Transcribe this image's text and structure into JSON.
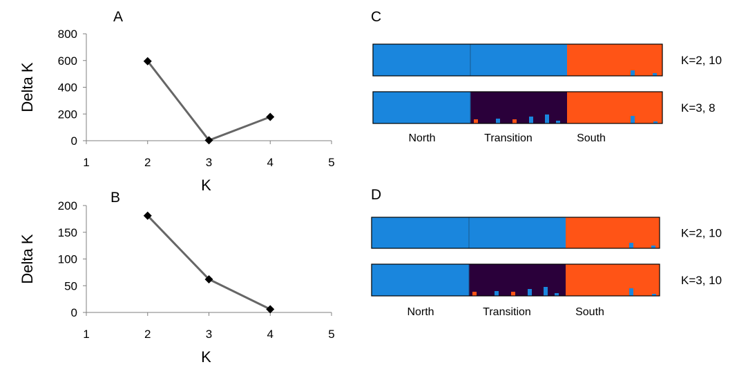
{
  "panel_a_label": "A",
  "panel_b_label": "B",
  "panel_c_label": "C",
  "panel_d_label": "D",
  "chart_data": [
    {
      "id": "A",
      "type": "line",
      "title": "",
      "xlabel": "K",
      "ylabel": "Delta K",
      "xlim": [
        1,
        5
      ],
      "ylim": [
        0,
        800
      ],
      "xticks": [
        1,
        2,
        3,
        4,
        5
      ],
      "yticks": [
        0,
        200,
        400,
        600,
        800
      ],
      "grid": false,
      "line_color": "#666666",
      "marker": "diamond",
      "series": [
        {
          "x": [
            2,
            3,
            4
          ],
          "y": [
            595,
            3,
            178
          ]
        }
      ]
    },
    {
      "id": "B",
      "type": "line",
      "title": "",
      "xlabel": "K",
      "ylabel": "Delta K",
      "xlim": [
        1,
        5
      ],
      "ylim": [
        0,
        200
      ],
      "xticks": [
        1,
        2,
        3,
        4,
        5
      ],
      "yticks": [
        0,
        50,
        100,
        150,
        200
      ],
      "grid": false,
      "line_color": "#666666",
      "marker": "diamond",
      "series": [
        {
          "x": [
            2,
            3,
            4
          ],
          "y": [
            181,
            62,
            6
          ]
        }
      ]
    },
    {
      "id": "C",
      "type": "bar",
      "stacked": true,
      "regions": [
        "North",
        "Transition",
        "South"
      ],
      "colors": {
        "cluster1": "#1a86dd",
        "cluster2": "#ff5416",
        "cluster3": "#2a003a"
      },
      "rows": [
        {
          "label": "K=2, 10",
          "region_clusters": [
            "cluster1",
            "cluster1",
            "cluster2"
          ]
        },
        {
          "label": "K=3,   8",
          "region_clusters": [
            "cluster1",
            "cluster3",
            "cluster2"
          ]
        }
      ]
    },
    {
      "id": "D",
      "type": "bar",
      "stacked": true,
      "regions": [
        "North",
        "Transition",
        "South"
      ],
      "colors": {
        "cluster1": "#1a86dd",
        "cluster2": "#ff5416",
        "cluster3": "#2a003a"
      },
      "rows": [
        {
          "label": "K=2, 10",
          "region_clusters": [
            "cluster1",
            "cluster1",
            "cluster2"
          ]
        },
        {
          "label": "K=3, 10",
          "region_clusters": [
            "cluster1",
            "cluster3",
            "cluster2"
          ]
        }
      ]
    }
  ]
}
